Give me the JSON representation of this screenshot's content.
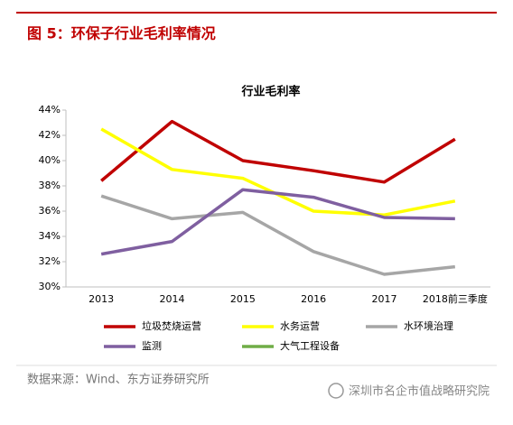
{
  "header": {
    "title": "图 5：环保子行业毛利率情况"
  },
  "chart_data": {
    "type": "line",
    "title": "行业毛利率",
    "categories": [
      "2013",
      "2014",
      "2015",
      "2016",
      "2017",
      "2018前三季度"
    ],
    "series": [
      {
        "name": "垃圾焚烧运营",
        "color": "#c00000",
        "values": [
          38.4,
          43.1,
          40.0,
          39.2,
          38.3,
          41.7
        ]
      },
      {
        "name": "水务运营",
        "color": "#ffff00",
        "values": [
          42.5,
          39.3,
          38.6,
          36.0,
          35.7,
          36.8
        ]
      },
      {
        "name": "水环境治理",
        "color": "#a6a6a6",
        "values": [
          37.2,
          35.4,
          35.9,
          32.8,
          31.0,
          31.6
        ]
      },
      {
        "name": "监测",
        "color": "#7f5fa0",
        "values": [
          32.6,
          33.6,
          37.7,
          37.1,
          35.5,
          35.4
        ]
      },
      {
        "name": "大气工程设备",
        "color": "#70ad47",
        "values": [
          null,
          null,
          null,
          null,
          null,
          null
        ]
      }
    ],
    "ylim": [
      30,
      44
    ],
    "yticks": [
      {
        "value": 30,
        "label": "30%"
      },
      {
        "value": 32,
        "label": "32%"
      },
      {
        "value": 34,
        "label": "34%"
      },
      {
        "value": 36,
        "label": "36%"
      },
      {
        "value": 38,
        "label": "38%"
      },
      {
        "value": 40,
        "label": "40%"
      },
      {
        "value": 42,
        "label": "42%"
      },
      {
        "value": 44,
        "label": "44%"
      }
    ]
  },
  "source": "数据来源：Wind、东方证券研究所",
  "watermark": "深圳市名企市值战略研究院"
}
